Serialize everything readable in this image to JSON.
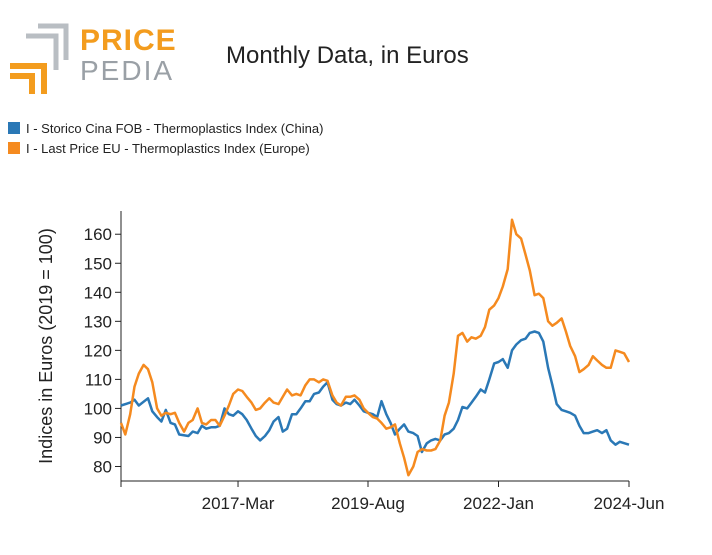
{
  "brand": {
    "price": "PRICE",
    "pedia": "PEDIA"
  },
  "colors": {
    "china": "#2a78b6",
    "europe": "#f58a1f",
    "logo_orange": "#f39c1e",
    "logo_grey": "#9aa0a6"
  },
  "chart_data": {
    "type": "line",
    "title": "Monthly Data, in Euros",
    "xlabel": "",
    "ylabel": "Indices in Euros (2019 = 100)",
    "x_tick_labels": [
      "2017-Mar",
      "2019-Aug",
      "2022-Jan",
      "2024-Jun"
    ],
    "x_tick_positions": [
      2017.17,
      2019.58,
      2022.0,
      2024.42
    ],
    "xlim": [
      2015.0,
      2024.42
    ],
    "ylim": [
      75,
      168
    ],
    "y_ticks": [
      80,
      90,
      100,
      110,
      120,
      130,
      140,
      150,
      160
    ],
    "grid": false,
    "legend_position": "top-left",
    "series": [
      {
        "name": "I - Storico Cina FOB - Thermoplastics Index (China)",
        "color": "#2a78b6",
        "points": [
          [
            2015.0,
            101
          ],
          [
            2015.17,
            102
          ],
          [
            2015.25,
            103
          ],
          [
            2015.33,
            101
          ],
          [
            2015.5,
            103.5
          ],
          [
            2015.58,
            99
          ],
          [
            2015.67,
            97
          ],
          [
            2015.75,
            95.5
          ],
          [
            2015.83,
            99.5
          ],
          [
            2015.92,
            95
          ],
          [
            2016.0,
            94.5
          ],
          [
            2016.08,
            91
          ],
          [
            2016.25,
            90.5
          ],
          [
            2016.33,
            92
          ],
          [
            2016.42,
            91.5
          ],
          [
            2016.5,
            94
          ],
          [
            2016.58,
            93
          ],
          [
            2016.67,
            93.5
          ],
          [
            2016.75,
            93.5
          ],
          [
            2016.83,
            94
          ],
          [
            2016.92,
            100
          ],
          [
            2017.0,
            98
          ],
          [
            2017.08,
            97.5
          ],
          [
            2017.17,
            99
          ],
          [
            2017.25,
            98
          ],
          [
            2017.33,
            96
          ],
          [
            2017.42,
            93
          ],
          [
            2017.5,
            90.5
          ],
          [
            2017.58,
            89
          ],
          [
            2017.67,
            90.5
          ],
          [
            2017.75,
            92.5
          ],
          [
            2017.83,
            95.5
          ],
          [
            2017.92,
            97
          ],
          [
            2018.0,
            92
          ],
          [
            2018.08,
            93
          ],
          [
            2018.17,
            98
          ],
          [
            2018.25,
            98
          ],
          [
            2018.33,
            100
          ],
          [
            2018.42,
            102.5
          ],
          [
            2018.5,
            102.5
          ],
          [
            2018.58,
            105
          ],
          [
            2018.67,
            105.5
          ],
          [
            2018.75,
            107.5
          ],
          [
            2018.83,
            109
          ],
          [
            2018.92,
            103
          ],
          [
            2019.0,
            101.5
          ],
          [
            2019.08,
            101
          ],
          [
            2019.17,
            102
          ],
          [
            2019.25,
            101.5
          ],
          [
            2019.33,
            103
          ],
          [
            2019.42,
            101
          ],
          [
            2019.5,
            99
          ],
          [
            2019.58,
            98.5
          ],
          [
            2019.67,
            98
          ],
          [
            2019.75,
            97
          ],
          [
            2019.83,
            102.5
          ],
          [
            2019.92,
            98
          ],
          [
            2020.0,
            95
          ],
          [
            2020.08,
            91
          ],
          [
            2020.17,
            93
          ],
          [
            2020.25,
            94.5
          ],
          [
            2020.33,
            92
          ],
          [
            2020.42,
            91.5
          ],
          [
            2020.5,
            90.5
          ],
          [
            2020.58,
            85
          ],
          [
            2020.67,
            88
          ],
          [
            2020.75,
            89
          ],
          [
            2020.83,
            89.5
          ],
          [
            2020.92,
            89
          ],
          [
            2021.0,
            91
          ],
          [
            2021.08,
            91.5
          ],
          [
            2021.17,
            93
          ],
          [
            2021.25,
            96
          ],
          [
            2021.33,
            100.5
          ],
          [
            2021.42,
            100
          ],
          [
            2021.5,
            102
          ],
          [
            2021.58,
            104
          ],
          [
            2021.67,
            106.5
          ],
          [
            2021.75,
            105.5
          ],
          [
            2021.83,
            110
          ],
          [
            2021.92,
            115.5
          ],
          [
            2022.0,
            116
          ],
          [
            2022.08,
            117
          ],
          [
            2022.17,
            114
          ],
          [
            2022.25,
            120
          ],
          [
            2022.33,
            122
          ],
          [
            2022.42,
            123.5
          ],
          [
            2022.5,
            124
          ],
          [
            2022.58,
            126
          ],
          [
            2022.67,
            126.5
          ],
          [
            2022.75,
            126
          ],
          [
            2022.83,
            123
          ],
          [
            2022.92,
            114
          ],
          [
            2023.0,
            108
          ],
          [
            2023.08,
            101.5
          ],
          [
            2023.17,
            99.5
          ],
          [
            2023.25,
            99
          ],
          [
            2023.33,
            98.5
          ],
          [
            2023.42,
            97.5
          ],
          [
            2023.5,
            94
          ],
          [
            2023.58,
            91.5
          ],
          [
            2023.67,
            91.5
          ],
          [
            2023.75,
            92
          ],
          [
            2023.83,
            92.5
          ],
          [
            2023.92,
            91.5
          ],
          [
            2024.0,
            92.5
          ],
          [
            2024.08,
            89
          ],
          [
            2024.17,
            87.5
          ],
          [
            2024.25,
            88.5
          ],
          [
            2024.42,
            87.5
          ]
        ]
      },
      {
        "name": "I - Last Price EU - Thermoplastics Index (Europe)",
        "color": "#f58a1f",
        "points": [
          [
            2015.0,
            95
          ],
          [
            2015.08,
            91
          ],
          [
            2015.17,
            98
          ],
          [
            2015.25,
            107.5
          ],
          [
            2015.33,
            112
          ],
          [
            2015.42,
            115
          ],
          [
            2015.5,
            113.5
          ],
          [
            2015.58,
            109
          ],
          [
            2015.67,
            100
          ],
          [
            2015.75,
            97.5
          ],
          [
            2015.83,
            98.5
          ],
          [
            2015.92,
            98
          ],
          [
            2016.0,
            98.5
          ],
          [
            2016.08,
            95
          ],
          [
            2016.17,
            92
          ],
          [
            2016.25,
            95
          ],
          [
            2016.33,
            96
          ],
          [
            2016.42,
            100
          ],
          [
            2016.5,
            95
          ],
          [
            2016.58,
            94.5
          ],
          [
            2016.67,
            96
          ],
          [
            2016.75,
            96
          ],
          [
            2016.83,
            94
          ],
          [
            2016.92,
            97.5
          ],
          [
            2017.0,
            101
          ],
          [
            2017.08,
            105
          ],
          [
            2017.17,
            106.5
          ],
          [
            2017.25,
            106
          ],
          [
            2017.33,
            104
          ],
          [
            2017.42,
            102
          ],
          [
            2017.5,
            99.5
          ],
          [
            2017.58,
            100
          ],
          [
            2017.67,
            102
          ],
          [
            2017.75,
            103.5
          ],
          [
            2017.83,
            102
          ],
          [
            2017.92,
            101.5
          ],
          [
            2018.0,
            104
          ],
          [
            2018.08,
            106.5
          ],
          [
            2018.17,
            104.5
          ],
          [
            2018.25,
            105
          ],
          [
            2018.33,
            104.5
          ],
          [
            2018.42,
            108
          ],
          [
            2018.5,
            110
          ],
          [
            2018.58,
            110
          ],
          [
            2018.67,
            109
          ],
          [
            2018.75,
            110
          ],
          [
            2018.83,
            109.5
          ],
          [
            2018.92,
            104.5
          ],
          [
            2019.0,
            102
          ],
          [
            2019.08,
            101
          ],
          [
            2019.17,
            104
          ],
          [
            2019.25,
            104
          ],
          [
            2019.33,
            104.5
          ],
          [
            2019.42,
            103
          ],
          [
            2019.5,
            100
          ],
          [
            2019.58,
            98.5
          ],
          [
            2019.67,
            97
          ],
          [
            2019.75,
            96.5
          ],
          [
            2019.83,
            95
          ],
          [
            2019.92,
            93
          ],
          [
            2020.0,
            93.5
          ],
          [
            2020.08,
            94.5
          ],
          [
            2020.17,
            88
          ],
          [
            2020.25,
            83
          ],
          [
            2020.33,
            77
          ],
          [
            2020.42,
            80
          ],
          [
            2020.5,
            85
          ],
          [
            2020.58,
            86
          ],
          [
            2020.67,
            85.5
          ],
          [
            2020.75,
            85.5
          ],
          [
            2020.83,
            86
          ],
          [
            2020.92,
            89
          ],
          [
            2021.0,
            97.5
          ],
          [
            2021.08,
            102
          ],
          [
            2021.17,
            112
          ],
          [
            2021.25,
            125
          ],
          [
            2021.33,
            126
          ],
          [
            2021.42,
            123
          ],
          [
            2021.5,
            124.5
          ],
          [
            2021.58,
            124
          ],
          [
            2021.67,
            125
          ],
          [
            2021.75,
            128
          ],
          [
            2021.83,
            134
          ],
          [
            2021.92,
            135.5
          ],
          [
            2022.0,
            138
          ],
          [
            2022.08,
            142
          ],
          [
            2022.17,
            148
          ],
          [
            2022.25,
            165
          ],
          [
            2022.33,
            160
          ],
          [
            2022.42,
            158.5
          ],
          [
            2022.5,
            153
          ],
          [
            2022.58,
            147.5
          ],
          [
            2022.67,
            139
          ],
          [
            2022.75,
            139.5
          ],
          [
            2022.83,
            138
          ],
          [
            2022.92,
            130
          ],
          [
            2023.0,
            128.5
          ],
          [
            2023.08,
            129.5
          ],
          [
            2023.17,
            131
          ],
          [
            2023.25,
            126.5
          ],
          [
            2023.33,
            121.5
          ],
          [
            2023.42,
            118
          ],
          [
            2023.5,
            112.5
          ],
          [
            2023.58,
            113.5
          ],
          [
            2023.67,
            115
          ],
          [
            2023.75,
            118
          ],
          [
            2023.83,
            116.5
          ],
          [
            2023.92,
            115
          ],
          [
            2024.0,
            114
          ],
          [
            2024.08,
            114
          ],
          [
            2024.17,
            120
          ],
          [
            2024.25,
            119.5
          ],
          [
            2024.33,
            119
          ],
          [
            2024.42,
            116
          ]
        ]
      }
    ]
  }
}
